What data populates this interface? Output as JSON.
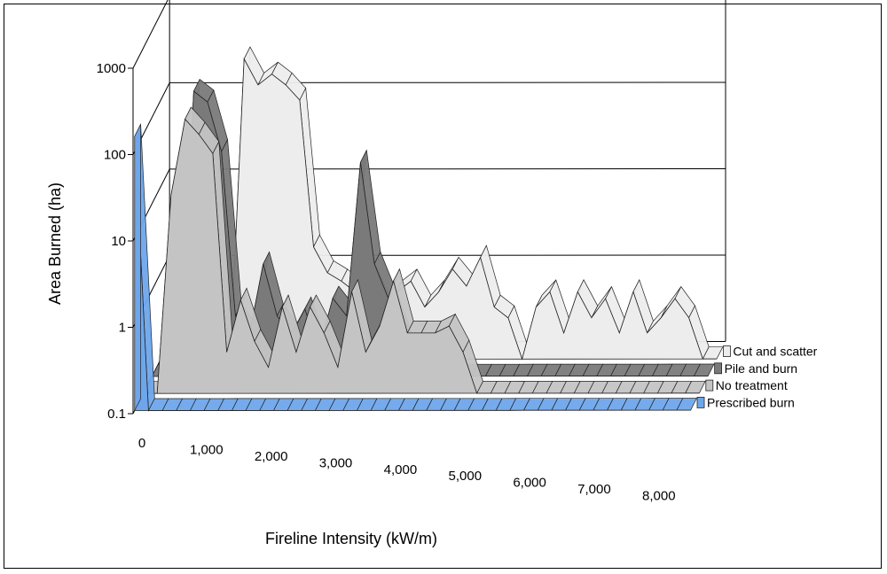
{
  "chart_data": {
    "type": "area",
    "title": "",
    "xlabel": "Fireline Intensity (kW/m)",
    "ylabel": "Area Burned (ha)",
    "y_scale": "log",
    "ylim": [
      0.1,
      1000
    ],
    "y_ticks": [
      "0.1",
      "1",
      "10",
      "100",
      "1000"
    ],
    "xlim": [
      0,
      8000
    ],
    "x_ticks": [
      "0",
      "1,000",
      "2,000",
      "3,000",
      "4,000",
      "5,000",
      "6,000",
      "7,000",
      "8,000"
    ],
    "grid": true,
    "legend_position": "right",
    "x": [
      0,
      200,
      400,
      600,
      800,
      1000,
      1200,
      1400,
      1600,
      1800,
      2000,
      2200,
      2400,
      2600,
      2800,
      3000,
      3200,
      3400,
      3600,
      3800,
      4000,
      4200,
      4400,
      4600,
      4800,
      5000,
      5200,
      5400,
      5600,
      5800,
      6000,
      6200,
      6400,
      6600,
      6800,
      7000,
      7200,
      7400,
      7600,
      7800,
      8000
    ],
    "series": [
      {
        "name": "Prescribed burn",
        "color": "#6ea6ec",
        "values": [
          150,
          0.1,
          0.1,
          0.1,
          0.1,
          0.1,
          0.1,
          0.1,
          0.1,
          0.1,
          0.1,
          0.1,
          0.1,
          0.1,
          0.1,
          0.1,
          0.1,
          0.1,
          0.1,
          0.1,
          0.1,
          0.1,
          0.1,
          0.1,
          0.1,
          0.1,
          0.1,
          0.1,
          0.1,
          0.1,
          0.1,
          0.1,
          0.1,
          0.1,
          0.1,
          0.1,
          0.1,
          0.1,
          0.1,
          0.1,
          0.1
        ]
      },
      {
        "name": "No treatment",
        "color": "#c4c4c4",
        "values": [
          0.1,
          0.1,
          20,
          150,
          100,
          60,
          0.3,
          1.2,
          0.4,
          0.2,
          1,
          0.3,
          1,
          0.5,
          0.2,
          1.5,
          0.3,
          0.6,
          2,
          0.5,
          0.5,
          0.5,
          0.6,
          0.3,
          0.1,
          0.1,
          0.1,
          0.1,
          0.1,
          0.1,
          0.1,
          0.1,
          0.1,
          0.1,
          0.1,
          0.1,
          0.1,
          0.1,
          0.1,
          0.1,
          0.1
        ]
      },
      {
        "name": "Pile and burn",
        "color": "#7a7a7a",
        "values": [
          0.1,
          0.1,
          0.1,
          200,
          150,
          40,
          0.5,
          0.3,
          2,
          0.5,
          0.3,
          0.6,
          0.2,
          0.8,
          0.5,
          30,
          2,
          0.8,
          0.3,
          0.1,
          0.1,
          0.1,
          0.1,
          0.1,
          0.1,
          0.1,
          0.1,
          0.1,
          0.1,
          0.1,
          0.1,
          0.1,
          0.1,
          0.1,
          0.1,
          0.1,
          0.1,
          0.1,
          0.1,
          0.1,
          0.1
        ]
      },
      {
        "name": "Cut and scatter",
        "color": "#ededed",
        "values": [
          0.1,
          0.1,
          0.1,
          0.1,
          0.1,
          0.1,
          300,
          150,
          200,
          150,
          100,
          2,
          1,
          0.8,
          0.6,
          0.9,
          0.4,
          0.6,
          0.8,
          0.4,
          0.6,
          1.1,
          0.7,
          1.5,
          0.4,
          0.3,
          0.1,
          0.4,
          0.6,
          0.2,
          0.6,
          0.3,
          0.5,
          0.2,
          0.6,
          0.2,
          0.3,
          0.5,
          0.3,
          0.1,
          0.1
        ]
      }
    ]
  }
}
